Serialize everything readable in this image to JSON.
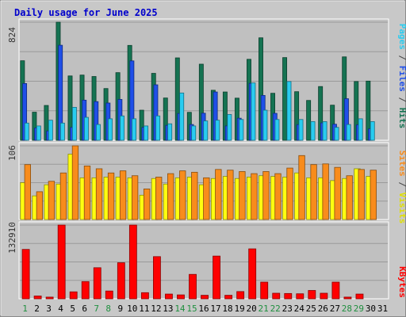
{
  "chart_data": {
    "type": "bar",
    "title": "Daily usage for June 2025",
    "categories": [
      "1",
      "2",
      "3",
      "4",
      "5",
      "6",
      "7",
      "8",
      "9",
      "10",
      "11",
      "12",
      "13",
      "14",
      "15",
      "16",
      "17",
      "18",
      "19",
      "20",
      "21",
      "22",
      "23",
      "24",
      "25",
      "26",
      "27",
      "28",
      "29",
      "30",
      "31"
    ],
    "weekend_days": [
      "1",
      "7",
      "8",
      "14",
      "15",
      "21",
      "22",
      "28",
      "29"
    ],
    "panels": [
      {
        "id": "hits-files-pages",
        "max_label": "824",
        "ylim": [
          0,
          824
        ],
        "axis_labels": [
          "Pages",
          "Files",
          "Hits"
        ],
        "series": [
          {
            "name": "Hits",
            "color": "#157352",
            "values": [
              555,
              196,
              243,
              824,
              449,
              455,
              445,
              361,
              472,
              662,
              210,
              467,
              295,
              575,
              195,
              531,
              349,
              337,
              294,
              565,
              715,
              328,
              577,
              339,
              278,
              375,
              245,
              582,
              410,
              413,
              0
            ]
          },
          {
            "name": "Files",
            "color": "#1f4fe8",
            "values": [
              396,
              86,
              65,
              663,
              90,
              280,
              270,
              260,
              285,
              554,
              90,
              387,
              104,
              187,
              110,
              189,
              337,
              100,
              154,
              397,
              313,
              188,
              0,
              109,
              0,
              121,
              112,
              290,
              108,
              80,
              0
            ]
          },
          {
            "name": "Pages",
            "color": "#29ccf0",
            "values": [
              120,
              100,
              140,
              120,
              230,
              160,
              110,
              150,
              170,
              150,
              100,
              170,
              115,
              330,
              100,
              135,
              140,
              180,
              145,
              400,
              210,
              145,
              410,
              145,
              130,
              130,
              90,
              110,
              150,
              130,
              0
            ]
          }
        ]
      },
      {
        "id": "visits-sites",
        "max_label": "106",
        "ylim": [
          0,
          106
        ],
        "axis_labels": [
          "Sites",
          "Visits"
        ],
        "series": [
          {
            "name": "Sites",
            "color": "#f88c1c",
            "values": [
              79,
              40,
              55,
              67,
              106,
              77,
              73,
              67,
              70,
              63,
              44,
              61,
              66,
              70,
              68,
              60,
              72,
              71,
              69,
              66,
              69,
              66,
              74,
              92,
              79,
              80,
              75,
              63,
              72,
              71,
              0
            ]
          },
          {
            "name": "Visits",
            "color": "#ffff10",
            "values": [
              53,
              34,
              50,
              51,
              94,
              60,
              60,
              61,
              61,
              60,
              35,
              59,
              51,
              60,
              61,
              50,
              59,
              62,
              59,
              61,
              63,
              62,
              61,
              67,
              60,
              60,
              56,
              59,
              73,
              62,
              0
            ]
          }
        ]
      },
      {
        "id": "kbytes",
        "max_label": "132910",
        "ylim": [
          0,
          132910
        ],
        "axis_labels": [
          "KBytes"
        ],
        "series": [
          {
            "name": "KBytes",
            "color": "#ff0000",
            "values": [
              89000,
              5000,
              3000,
              132910,
              12500,
              31000,
              56000,
              14000,
              65000,
              132910,
              11000,
              76000,
              8500,
              7000,
              44000,
              6300,
              77000,
              6300,
              13000,
              90000,
              30000,
              10000,
              9500,
              9000,
              15000,
              10000,
              30000,
              3000,
              8500,
              0,
              0
            ]
          }
        ]
      }
    ]
  }
}
